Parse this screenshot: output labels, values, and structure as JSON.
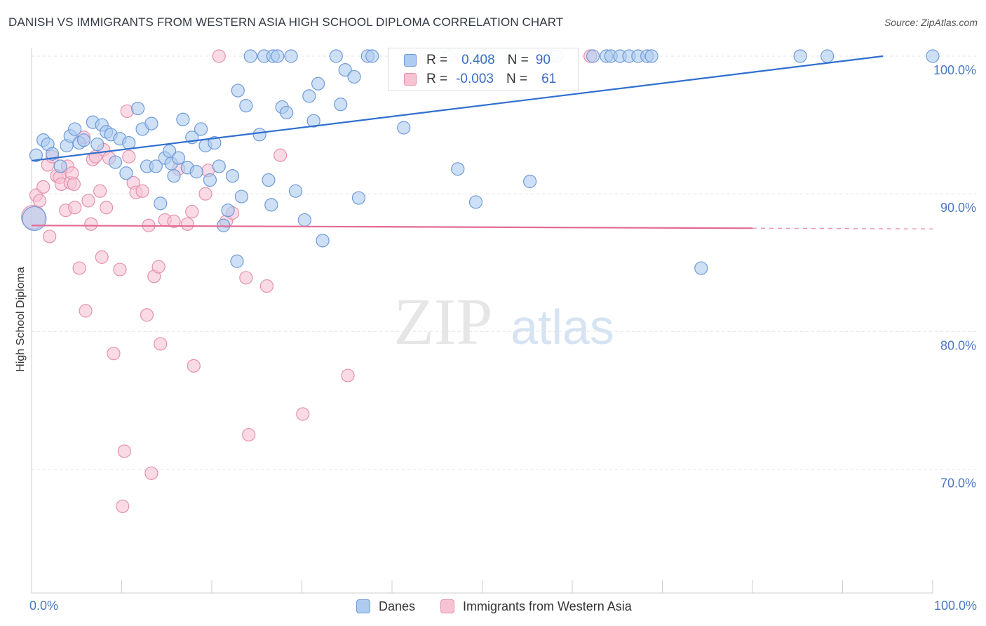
{
  "title": "DANISH VS IMMIGRANTS FROM WESTERN ASIA HIGH SCHOOL DIPLOMA CORRELATION CHART",
  "source": "Source: ZipAtlas.com",
  "watermark": {
    "zip": "ZIP",
    "atlas": "atlas"
  },
  "colors": {
    "danes_fill": "#aecbf0",
    "danes_stroke": "#6f9ad8",
    "danes_line": "#2f6fcf",
    "imm_fill": "#f7c3d3",
    "imm_stroke": "#e690ad",
    "imm_line": "#e36b95",
    "tick_label": "#4a78c2",
    "grid": "#e4e4e4"
  },
  "legend": {
    "rows": [
      {
        "r_label": "R =",
        "r_value": "0.408",
        "n_label": "N =",
        "n_value": "90"
      },
      {
        "r_label": "R =",
        "r_value": "-0.003",
        "n_label": "N =",
        "n_value": "61"
      }
    ]
  },
  "bottom_legend": {
    "danes": "Danes",
    "immigrants": "Immigrants from Western Asia"
  },
  "chart_data": {
    "type": "scatter",
    "ylabel": "High School Diploma",
    "xlim": [
      0,
      100
    ],
    "ylim": [
      61,
      101
    ],
    "x_tick_labels": {
      "0": "0.0%",
      "100": "100.0%"
    },
    "y_ticks": [
      {
        "value": 100,
        "label": "100.0%"
      },
      {
        "value": 90,
        "label": "90.0%"
      },
      {
        "value": 80,
        "label": "80.0%"
      },
      {
        "value": 70,
        "label": "70.0%"
      }
    ],
    "series": [
      {
        "name": "Danes",
        "trend": {
          "x": [
            0,
            94.5
          ],
          "y": [
            92.4,
            100.0
          ]
        },
        "points": [
          [
            0.3,
            88.2
          ],
          [
            0.5,
            92.8
          ],
          [
            1.3,
            93.9
          ],
          [
            1.8,
            93.6
          ],
          [
            2.3,
            92.9
          ],
          [
            3.2,
            92.0
          ],
          [
            3.9,
            93.5
          ],
          [
            4.3,
            94.2
          ],
          [
            4.8,
            94.7
          ],
          [
            5.3,
            93.7
          ],
          [
            5.8,
            93.9
          ],
          [
            6.8,
            95.2
          ],
          [
            7.3,
            93.6
          ],
          [
            7.8,
            95.0
          ],
          [
            8.3,
            94.5
          ],
          [
            8.8,
            94.3
          ],
          [
            9.3,
            92.3
          ],
          [
            9.8,
            94.0
          ],
          [
            10.5,
            91.5
          ],
          [
            10.8,
            93.7
          ],
          [
            11.8,
            96.2
          ],
          [
            12.3,
            94.7
          ],
          [
            12.8,
            92.0
          ],
          [
            13.3,
            95.1
          ],
          [
            13.8,
            92.0
          ],
          [
            14.3,
            89.3
          ],
          [
            14.8,
            92.6
          ],
          [
            15.3,
            93.1
          ],
          [
            15.5,
            92.2
          ],
          [
            15.8,
            91.3
          ],
          [
            16.3,
            92.6
          ],
          [
            16.8,
            95.4
          ],
          [
            17.3,
            91.9
          ],
          [
            17.8,
            94.1
          ],
          [
            18.3,
            91.6
          ],
          [
            18.8,
            94.7
          ],
          [
            19.3,
            93.5
          ],
          [
            19.8,
            91.0
          ],
          [
            20.3,
            93.7
          ],
          [
            20.8,
            92.0
          ],
          [
            21.3,
            87.7
          ],
          [
            21.8,
            88.8
          ],
          [
            22.3,
            91.3
          ],
          [
            22.8,
            85.1
          ],
          [
            22.9,
            97.5
          ],
          [
            23.3,
            89.8
          ],
          [
            23.8,
            96.4
          ],
          [
            24.3,
            100.0
          ],
          [
            25.3,
            94.3
          ],
          [
            25.8,
            100.0
          ],
          [
            26.3,
            91.0
          ],
          [
            26.6,
            89.2
          ],
          [
            26.8,
            100.0
          ],
          [
            27.3,
            100.0
          ],
          [
            27.8,
            96.3
          ],
          [
            28.3,
            95.9
          ],
          [
            28.8,
            100.0
          ],
          [
            29.3,
            90.2
          ],
          [
            30.3,
            88.1
          ],
          [
            30.8,
            97.1
          ],
          [
            31.3,
            95.3
          ],
          [
            31.8,
            98.0
          ],
          [
            32.3,
            86.6
          ],
          [
            33.8,
            100.0
          ],
          [
            34.3,
            96.5
          ],
          [
            34.8,
            99.0
          ],
          [
            35.8,
            98.5
          ],
          [
            36.3,
            89.7
          ],
          [
            37.3,
            100.0
          ],
          [
            37.8,
            100.0
          ],
          [
            41.3,
            94.8
          ],
          [
            46.3,
            100.0
          ],
          [
            47.3,
            91.8
          ],
          [
            49.3,
            89.4
          ],
          [
            50.3,
            100.0
          ],
          [
            53.3,
            100.0
          ],
          [
            55.3,
            90.9
          ],
          [
            58.3,
            100.0
          ],
          [
            62.3,
            100.0
          ],
          [
            63.8,
            100.0
          ],
          [
            64.3,
            100.0
          ],
          [
            65.3,
            100.0
          ],
          [
            66.3,
            100.0
          ],
          [
            67.3,
            100.0
          ],
          [
            68.3,
            100.0
          ],
          [
            68.8,
            100.0
          ],
          [
            74.3,
            84.6
          ],
          [
            85.3,
            100.0
          ],
          [
            88.3,
            100.0
          ],
          [
            100.0,
            100.0
          ]
        ]
      },
      {
        "name": "Immigrants from Western Asia",
        "trend": {
          "x": [
            0,
            80
          ],
          "y": [
            87.7,
            87.5
          ],
          "dashed_to": [
            100,
            87.45
          ]
        },
        "points": [
          [
            0.2,
            88.3
          ],
          [
            0.5,
            89.9
          ],
          [
            0.9,
            89.5
          ],
          [
            1.3,
            90.5
          ],
          [
            1.8,
            92.1
          ],
          [
            2.0,
            86.9
          ],
          [
            2.3,
            92.7
          ],
          [
            2.8,
            91.3
          ],
          [
            3.1,
            91.2
          ],
          [
            3.3,
            90.7
          ],
          [
            3.8,
            88.8
          ],
          [
            4.0,
            92.0
          ],
          [
            4.3,
            90.8
          ],
          [
            4.5,
            91.5
          ],
          [
            4.7,
            90.7
          ],
          [
            4.8,
            89.0
          ],
          [
            5.3,
            84.6
          ],
          [
            5.8,
            94.1
          ],
          [
            6.0,
            81.5
          ],
          [
            6.3,
            89.5
          ],
          [
            6.6,
            87.8
          ],
          [
            6.8,
            92.5
          ],
          [
            7.1,
            92.7
          ],
          [
            7.6,
            90.2
          ],
          [
            7.8,
            85.4
          ],
          [
            8.0,
            93.2
          ],
          [
            8.3,
            89.0
          ],
          [
            8.6,
            92.6
          ],
          [
            9.1,
            78.4
          ],
          [
            9.8,
            84.5
          ],
          [
            10.3,
            71.3
          ],
          [
            10.6,
            96.0
          ],
          [
            10.8,
            92.7
          ],
          [
            11.3,
            90.8
          ],
          [
            11.6,
            90.1
          ],
          [
            12.3,
            90.2
          ],
          [
            12.8,
            81.2
          ],
          [
            13.0,
            87.7
          ],
          [
            13.3,
            69.7
          ],
          [
            13.6,
            84.0
          ],
          [
            14.1,
            84.7
          ],
          [
            14.3,
            79.1
          ],
          [
            14.8,
            88.1
          ],
          [
            15.8,
            88.0
          ],
          [
            16.3,
            91.8
          ],
          [
            17.3,
            87.8
          ],
          [
            17.8,
            88.7
          ],
          [
            18.0,
            77.5
          ],
          [
            19.3,
            90.0
          ],
          [
            19.6,
            91.7
          ],
          [
            20.8,
            100.0
          ],
          [
            21.6,
            88.0
          ],
          [
            22.3,
            88.6
          ],
          [
            23.8,
            83.9
          ],
          [
            24.1,
            72.5
          ],
          [
            26.1,
            83.3
          ],
          [
            27.6,
            92.8
          ],
          [
            30.1,
            74.0
          ],
          [
            35.1,
            76.8
          ],
          [
            10.1,
            67.3
          ],
          [
            62.0,
            100.0
          ]
        ]
      }
    ]
  }
}
